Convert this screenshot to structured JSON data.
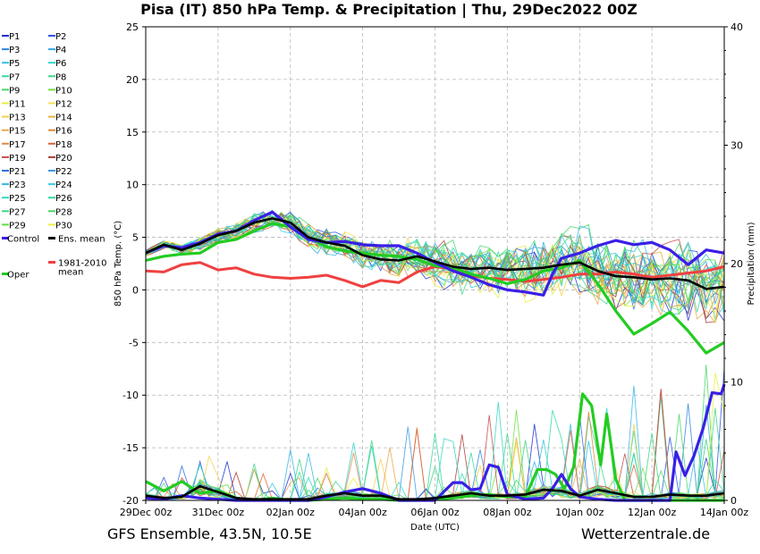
{
  "title": "Pisa  (IT)  850 hPa Temp. & Precipitation | Thu, 29Dec2022 00Z",
  "footer": {
    "left": "GFS Ensemble, 43.5N, 10.5E",
    "right": "Wetterzentrale.de"
  },
  "chart_data": {
    "type": "line",
    "xlabel": "Date (UTC)",
    "ylabel": "850 hPa Temp. (°C)",
    "y2label": "Precipitation (mm)",
    "ylim": [
      -20,
      25
    ],
    "y2lim": [
      0,
      40
    ],
    "xlim": [
      0,
      384
    ],
    "x_unit": "hours since 29Dec 00z",
    "x_ticks": [
      {
        "h": 0,
        "label": "29Dec 00z"
      },
      {
        "h": 48,
        "label": "31Dec 00z"
      },
      {
        "h": 96,
        "label": "02Jan 00z"
      },
      {
        "h": 144,
        "label": "04Jan 00z"
      },
      {
        "h": 192,
        "label": "06Jan 00z"
      },
      {
        "h": 240,
        "label": "08Jan 00z"
      },
      {
        "h": 288,
        "label": "10Jan 00z"
      },
      {
        "h": 336,
        "label": "12Jan 00z"
      },
      {
        "h": 384,
        "label": "14Jan 00z"
      }
    ],
    "y_ticks": [
      25,
      20,
      15,
      10,
      5,
      0,
      -5,
      -10,
      -15,
      -20
    ],
    "y2_ticks": [
      40,
      30,
      20,
      10,
      0
    ],
    "grid": true,
    "legend": [
      {
        "label": "P1",
        "color": "#1f2fd0"
      },
      {
        "label": "P2",
        "color": "#2a55e6"
      },
      {
        "label": "P3",
        "color": "#2f86e6"
      },
      {
        "label": "P4",
        "color": "#31a8e8"
      },
      {
        "label": "P5",
        "color": "#2fc4e6"
      },
      {
        "label": "P6",
        "color": "#2fd6c8"
      },
      {
        "label": "P7",
        "color": "#35d8a8"
      },
      {
        "label": "P8",
        "color": "#3bd68a"
      },
      {
        "label": "P9",
        "color": "#45d868"
      },
      {
        "label": "P10",
        "color": "#6ee040"
      },
      {
        "label": "P11",
        "color": "#e8ee3a"
      },
      {
        "label": "P12",
        "color": "#f5e25a"
      },
      {
        "label": "P13",
        "color": "#f3d24a"
      },
      {
        "label": "P14",
        "color": "#eab040"
      },
      {
        "label": "P15",
        "color": "#e8a64a"
      },
      {
        "label": "P16",
        "color": "#d88a3a"
      },
      {
        "label": "P17",
        "color": "#e08a4a"
      },
      {
        "label": "P18",
        "color": "#d8643a"
      },
      {
        "label": "P19",
        "color": "#c84a4a"
      },
      {
        "label": "P20",
        "color": "#b03a3a"
      },
      {
        "label": "P21",
        "color": "#2f6ee0"
      },
      {
        "label": "P22",
        "color": "#3a9ae8"
      },
      {
        "label": "P23",
        "color": "#35b6e8"
      },
      {
        "label": "P24",
        "color": "#38cde6"
      },
      {
        "label": "P25",
        "color": "#33d8c0"
      },
      {
        "label": "P26",
        "color": "#35d8a0"
      },
      {
        "label": "P27",
        "color": "#3ad680"
      },
      {
        "label": "P28",
        "color": "#48d860"
      },
      {
        "label": "P29",
        "color": "#5ee040"
      },
      {
        "label": "P30",
        "color": "#eef040"
      },
      {
        "label": "Control",
        "color": "#3a1fe6"
      },
      {
        "label": "Ens. mean",
        "color": "#000000"
      },
      {
        "label": "1981-2010 mean",
        "color": "#f04040"
      },
      {
        "label": "Oper",
        "color": "#22cc22"
      }
    ],
    "series": [
      {
        "name": "Control",
        "role": "temp",
        "color": "#3a1fe6",
        "x": [
          0,
          12,
          24,
          36,
          48,
          60,
          72,
          84,
          96,
          108,
          120,
          132,
          144,
          156,
          168,
          180,
          192,
          204,
          216,
          228,
          240,
          252,
          264,
          270,
          276,
          288,
          300,
          312,
          324,
          336,
          348,
          360,
          372,
          384
        ],
        "y": [
          3.5,
          4.2,
          4.0,
          4.5,
          5.3,
          5.6,
          6.6,
          7.4,
          6.0,
          4.8,
          4.5,
          4.6,
          4.3,
          4.2,
          4.2,
          3.5,
          2.6,
          1.8,
          1.2,
          0.5,
          0.0,
          -0.2,
          -0.5,
          1.5,
          3.0,
          3.5,
          4.2,
          4.7,
          4.3,
          4.5,
          3.8,
          2.4,
          3.8,
          3.5
        ]
      },
      {
        "name": "Ens. mean",
        "role": "temp",
        "color": "#000000",
        "x": [
          0,
          12,
          24,
          36,
          48,
          60,
          72,
          84,
          96,
          108,
          120,
          132,
          144,
          156,
          168,
          180,
          192,
          204,
          216,
          228,
          240,
          252,
          264,
          276,
          288,
          300,
          312,
          324,
          336,
          348,
          360,
          372,
          384
        ],
        "y": [
          3.5,
          4.3,
          3.8,
          4.4,
          5.2,
          5.6,
          6.4,
          6.8,
          6.4,
          5.0,
          4.5,
          4.2,
          3.3,
          2.9,
          2.8,
          3.2,
          2.7,
          2.2,
          2.0,
          2.1,
          1.9,
          2.0,
          2.1,
          2.4,
          2.6,
          1.8,
          1.3,
          1.2,
          1.0,
          1.1,
          0.9,
          0.1,
          0.3
        ]
      },
      {
        "name": "1981-2010 mean",
        "role": "temp",
        "color": "#f04040",
        "x": [
          0,
          12,
          24,
          36,
          48,
          60,
          72,
          84,
          96,
          108,
          120,
          132,
          144,
          156,
          168,
          180,
          192,
          204,
          216,
          228,
          240,
          252,
          264,
          276,
          288,
          300,
          312,
          324,
          336,
          348,
          360,
          372,
          384
        ],
        "y": [
          1.8,
          1.7,
          2.4,
          2.6,
          1.9,
          2.1,
          1.5,
          1.2,
          1.1,
          1.2,
          1.4,
          0.9,
          0.3,
          0.9,
          0.7,
          1.7,
          2.2,
          2.0,
          1.4,
          1.1,
          1.0,
          0.8,
          1.0,
          1.2,
          1.5,
          1.5,
          1.7,
          1.5,
          1.2,
          1.4,
          1.6,
          1.8,
          2.2
        ]
      },
      {
        "name": "Oper",
        "role": "temp",
        "color": "#22cc22",
        "x": [
          0,
          12,
          24,
          36,
          48,
          60,
          72,
          84,
          96,
          108,
          120,
          132,
          144,
          156,
          168,
          180,
          192,
          204,
          216,
          228,
          240,
          252,
          264,
          276,
          288,
          300,
          312,
          324,
          336,
          348,
          360,
          372,
          384
        ],
        "y": [
          2.8,
          3.2,
          3.4,
          3.5,
          4.5,
          4.8,
          5.6,
          6.3,
          6.0,
          5.0,
          4.1,
          3.7,
          3.5,
          3.3,
          3.2,
          2.9,
          2.3,
          2.1,
          1.5,
          1.1,
          0.6,
          1.0,
          1.8,
          2.1,
          2.8,
          0.6,
          -2.0,
          -4.2,
          -3.2,
          -2.1,
          -3.9,
          -6.0,
          -5.0
        ]
      },
      {
        "name": "Control",
        "role": "precip",
        "color": "#3a1fe6",
        "x": [
          0,
          12,
          24,
          36,
          48,
          60,
          72,
          84,
          96,
          108,
          120,
          132,
          144,
          156,
          168,
          180,
          192,
          204,
          210,
          216,
          222,
          228,
          234,
          240,
          252,
          264,
          270,
          276,
          282,
          288,
          300,
          312,
          324,
          336,
          348,
          352,
          358,
          364,
          370,
          376,
          382,
          384
        ],
        "y": [
          0.2,
          0.1,
          0.4,
          0.2,
          0.1,
          0.0,
          0.0,
          0.0,
          0.0,
          0.0,
          0.3,
          0.7,
          1.0,
          0.6,
          0.0,
          0.0,
          0.0,
          1.5,
          1.5,
          0.9,
          1.0,
          3.0,
          2.8,
          0.5,
          0.1,
          0.2,
          1.0,
          2.2,
          1.0,
          0.3,
          0.1,
          0.0,
          0.0,
          0.0,
          0.0,
          4.1,
          2.1,
          3.8,
          6.1,
          9.1,
          9.0,
          9.8
        ]
      },
      {
        "name": "Ens. mean",
        "role": "precip",
        "color": "#000000",
        "x": [
          0,
          12,
          24,
          36,
          48,
          60,
          72,
          84,
          96,
          108,
          120,
          132,
          144,
          156,
          168,
          180,
          192,
          204,
          216,
          228,
          240,
          252,
          264,
          276,
          288,
          300,
          312,
          324,
          336,
          348,
          360,
          372,
          384
        ],
        "y": [
          0.4,
          0.2,
          0.3,
          1.2,
          0.7,
          0.2,
          0.1,
          0.1,
          0.1,
          0.1,
          0.4,
          0.6,
          0.4,
          0.4,
          0.1,
          0.1,
          0.2,
          0.4,
          0.6,
          0.4,
          0.4,
          0.5,
          0.9,
          0.8,
          0.4,
          0.9,
          0.6,
          0.3,
          0.3,
          0.5,
          0.4,
          0.4,
          0.6
        ]
      },
      {
        "name": "Oper",
        "role": "precip",
        "color": "#22cc22",
        "x": [
          0,
          12,
          24,
          36,
          48,
          60,
          72,
          84,
          96,
          108,
          120,
          132,
          144,
          156,
          168,
          180,
          192,
          204,
          216,
          228,
          240,
          252,
          260,
          266,
          272,
          278,
          284,
          290,
          296,
          302,
          306,
          312,
          318,
          324,
          336,
          348,
          360,
          372,
          384
        ],
        "y": [
          1.6,
          0.8,
          1.6,
          0.6,
          0.8,
          0.2,
          0.0,
          0.2,
          0.0,
          0.0,
          0.1,
          0.2,
          0.1,
          0.1,
          0.0,
          0.0,
          0.1,
          0.2,
          0.4,
          0.5,
          0.3,
          0.3,
          2.6,
          2.6,
          2.2,
          1.0,
          2.8,
          9.0,
          8.0,
          3.0,
          7.3,
          1.8,
          0.0,
          0.0,
          0.0,
          0.0,
          0.0,
          0.0,
          0.0
        ]
      }
    ]
  }
}
